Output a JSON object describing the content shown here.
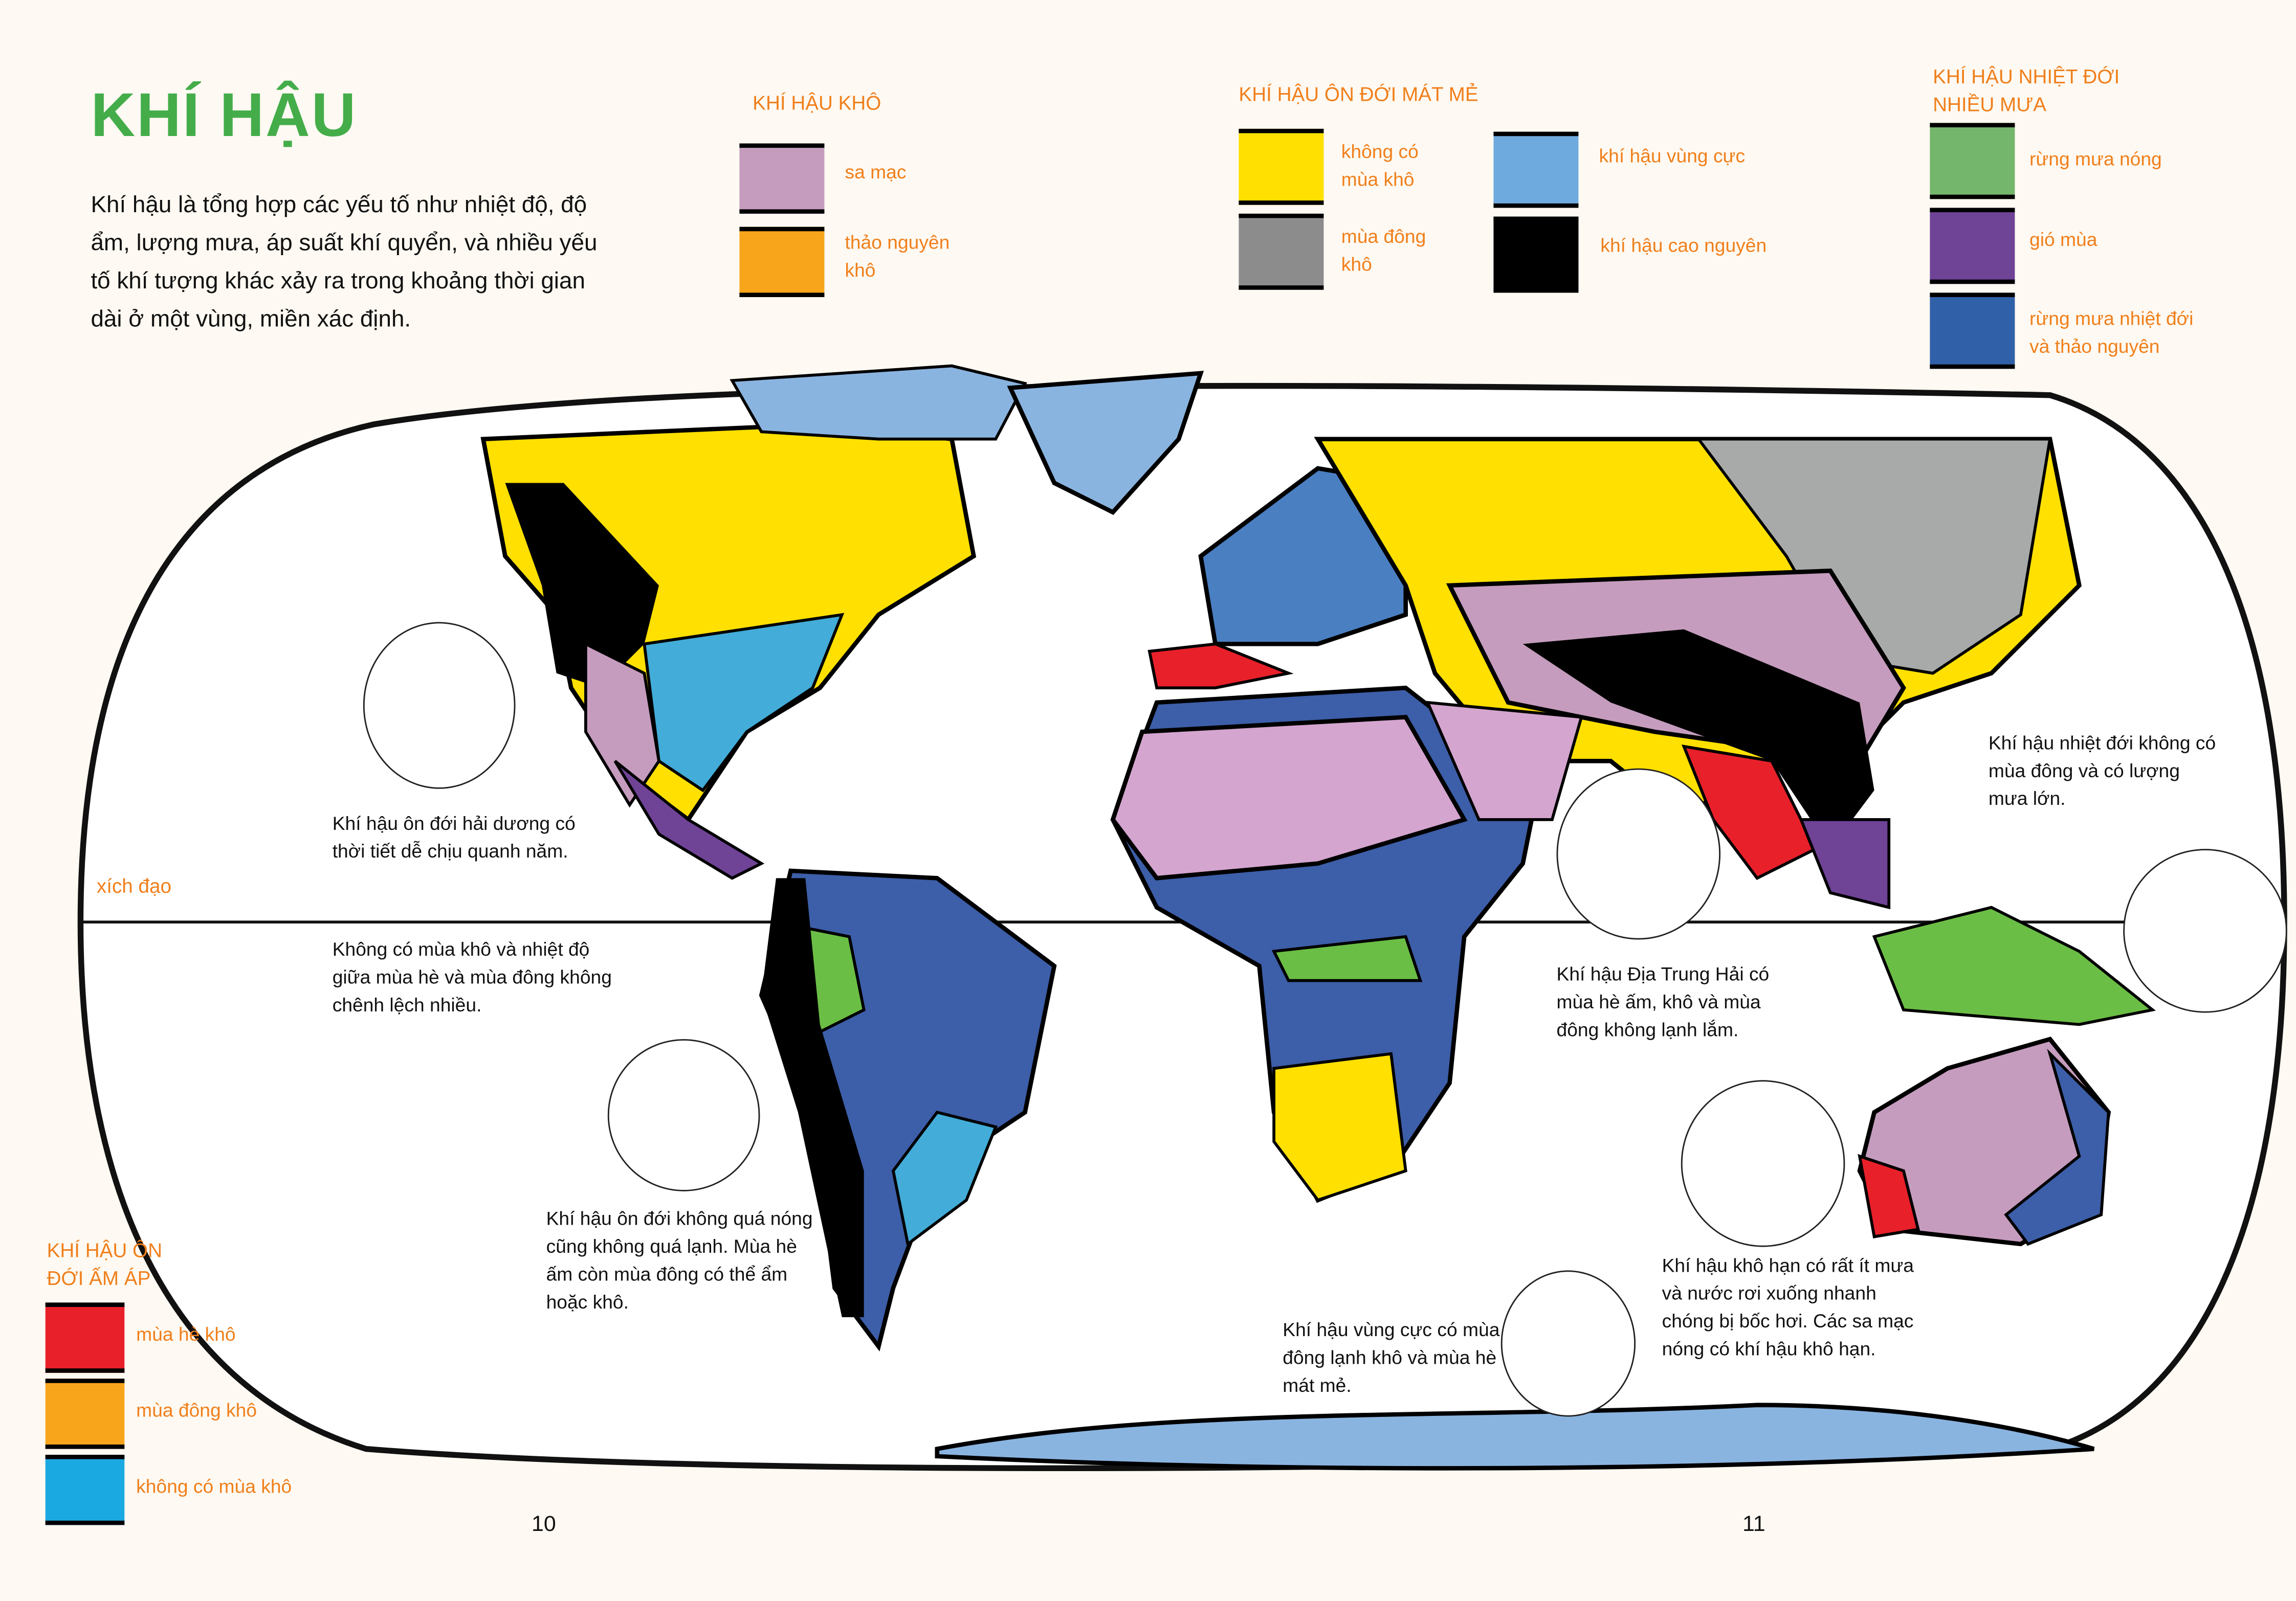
{
  "title": "KHÍ HẬU",
  "intro": "Khí hậu là tổng hợp các yếu tố như nhiệt độ, độ ẩm, lượng mưa, áp suất khí quyển, và nhiều yếu tố khí tượng khác xảy ra trong khoảng thời gian dài ở một vùng, miền xác định.",
  "legend": {
    "dry": {
      "heading": "KHÍ HẬU KHÔ",
      "items": [
        {
          "label": "sa mạc",
          "color": "#c59cbe"
        },
        {
          "label": "thảo nguyên khô",
          "color": "#f8a51c"
        }
      ]
    },
    "cool_temperate": {
      "heading": "KHÍ HẬU ÔN ĐỚI MÁT MẺ",
      "items": [
        {
          "label": "không có mùa khô",
          "color": "#ffe000"
        },
        {
          "label": "mùa đông khô",
          "color": "#8c8c8c"
        },
        {
          "label": "khí hậu vùng cực",
          "color": "#6eaade"
        },
        {
          "label": "khí hậu cao nguyên",
          "color": "#000000"
        }
      ]
    },
    "tropical": {
      "heading": "KHÍ HẬU NHIỆT ĐỚI NHIỀU MƯA",
      "items": [
        {
          "label": "rừng mưa nóng",
          "color": "#74b66b"
        },
        {
          "label": "gió mùa",
          "color": "#6f4396"
        },
        {
          "label": "rừng mưa nhiệt đới và thảo nguyên",
          "color": "#3060a8"
        }
      ]
    },
    "warm_temperate": {
      "heading": "KHÍ HẬU ÔN ĐỚI ẤM ÁP",
      "items": [
        {
          "label": "mùa hè khô",
          "color": "#e8202a"
        },
        {
          "label": "mùa đông khô",
          "color": "#f8a51c"
        },
        {
          "label": "không có mùa khô",
          "color": "#1ba9e1"
        }
      ]
    }
  },
  "map": {
    "equator_label": "xích đạo"
  },
  "captions": {
    "oceanic": "Khí hậu ôn đới hải dương có thời tiết dễ chịu quanh năm.",
    "no_dry": "Không có mùa khô và nhiệt độ giữa mùa hè và mùa đông không chênh lệch nhiều.",
    "temperate": "Khí hậu ôn đới không quá nóng cũng không quá lạnh. Mùa hè ấm còn mùa đông có thể ẩm hoặc khô.",
    "polar": "Khí hậu vùng cực có mùa đông lạnh khô và mùa hè mát mẻ.",
    "mediterranean": "Khí hậu Địa Trung Hải có mùa hè ấm, khô và mùa đông không lạnh lắm.",
    "arid": "Khí hậu khô hạn có rất ít mưa và nước rơi xuống nhanh chóng bị bốc hơi. Các sa mạc nóng có khí hậu khô hạn.",
    "tropical": "Khí hậu nhiệt đới không có mùa đông và có lượng mưa lớn."
  },
  "page_numbers": {
    "left": "10",
    "right": "11"
  }
}
